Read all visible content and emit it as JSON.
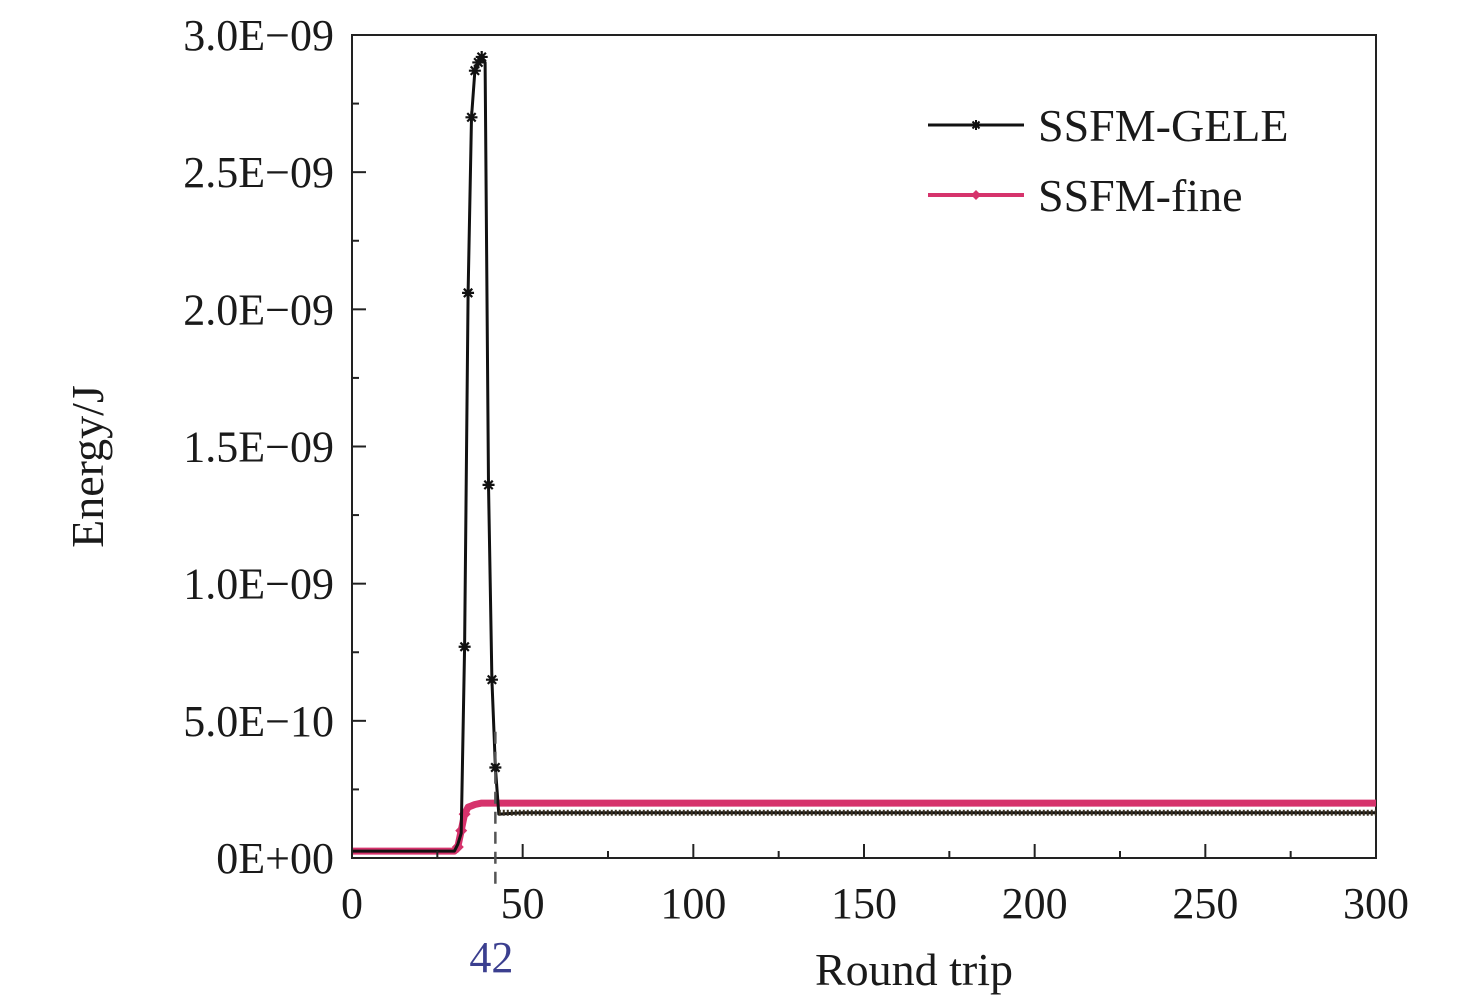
{
  "chart_data": {
    "type": "line",
    "title": "",
    "xlabel": "Round trip",
    "ylabel": "Energy/J",
    "xlim": [
      0,
      300
    ],
    "ylim": [
      0,
      3e-09
    ],
    "xticks": [
      0,
      50,
      100,
      150,
      200,
      250,
      300
    ],
    "xtick_labels": [
      "0",
      "50",
      "100",
      "150",
      "200",
      "250",
      "300"
    ],
    "yticks": [
      0,
      5e-10,
      1e-09,
      1.5e-09,
      2e-09,
      2.5e-09,
      3e-09
    ],
    "ytick_labels": [
      "0E+00",
      "5.0E−10",
      "1.0E−09",
      "1.5E−09",
      "2.0E−09",
      "2.5E−09",
      "3.0E−09"
    ],
    "grid": false,
    "legend_position": "top-right",
    "annotation": {
      "x": 42,
      "label": "42",
      "color": "#3b3f8f"
    },
    "series": [
      {
        "name": "SSFM-GELE",
        "color": "#111111",
        "marker": "star",
        "x": [
          0,
          10,
          20,
          30,
          31,
          32,
          33,
          34,
          35,
          36,
          37,
          38,
          39,
          40,
          41,
          42,
          43,
          50,
          100,
          150,
          200,
          250,
          300
        ],
        "y": [
          2.5e-11,
          2.5e-11,
          2.5e-11,
          2.5e-11,
          5e-11,
          9e-11,
          7.7e-10,
          2.06e-09,
          2.7e-09,
          2.87e-09,
          2.9e-09,
          2.92e-09,
          2.9e-09,
          1.36e-09,
          6.5e-10,
          3.3e-10,
          1.6e-10,
          1.65e-10,
          1.65e-10,
          1.65e-10,
          1.65e-10,
          1.65e-10,
          1.65e-10
        ],
        "marker_x": [
          33,
          34,
          35,
          36,
          37,
          38,
          40,
          41,
          42
        ]
      },
      {
        "name": "SSFM-fine",
        "color": "#d6336c",
        "marker": "diamond",
        "x": [
          0,
          10,
          20,
          30,
          31,
          32,
          33,
          34,
          35,
          36,
          38,
          40,
          42,
          50,
          100,
          150,
          200,
          250,
          300
        ],
        "y": [
          2.5e-11,
          2.5e-11,
          2.5e-11,
          2.5e-11,
          4e-11,
          1e-10,
          1.6e-10,
          1.85e-10,
          1.9e-10,
          1.95e-10,
          2e-10,
          2e-10,
          2e-10,
          2e-10,
          2e-10,
          2e-10,
          2e-10,
          2e-10,
          2e-10
        ],
        "marker_x": [
          31,
          32,
          33
        ]
      }
    ]
  }
}
